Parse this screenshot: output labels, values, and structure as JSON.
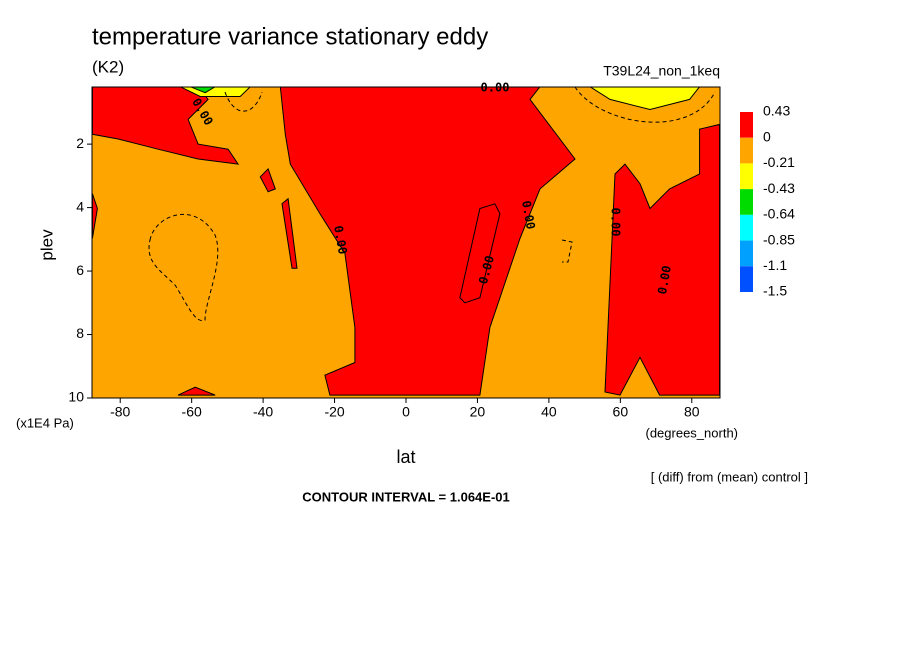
{
  "chart_data": {
    "type": "contour",
    "title": "temperature variance stationary eddy",
    "subtitle": "(K2)",
    "run_label": "T39L24_non_1keq",
    "x_label": "lat",
    "x_units": "(degrees_north)",
    "y_label": "plev",
    "y_units": "(x1E4 Pa)",
    "note": "[ (diff) from (mean) control ]",
    "contour_interval": "CONTOUR INTERVAL = 1.064E-01",
    "contour_label": "0.00",
    "xlim": [
      -87.9,
      87.9
    ],
    "xticks": [
      -80,
      -60,
      -40,
      -20,
      0,
      20,
      40,
      60,
      80
    ],
    "ylim": [
      0.2,
      10
    ],
    "yticks": [
      2,
      4,
      6,
      8,
      10
    ],
    "colorbar": {
      "levels": [
        0.43,
        0,
        -0.21,
        -0.43,
        -0.64,
        -0.85,
        -1.1,
        -1.5
      ],
      "colors": [
        "#ff0000",
        "#ffa500",
        "#ffff00",
        "#00dc00",
        "#00ffff",
        "#00a0ff",
        "#0050ff"
      ]
    },
    "regions": [
      {
        "min": -0.21,
        "lat": [
          -87.9,
          87.9,
          87.9,
          -87.9
        ],
        "plev": [
          0.2,
          0.2,
          10,
          10
        ]
      },
      {
        "min": 0,
        "lat": [
          -35.2,
          -33.8,
          -32.4,
          -24.1,
          -17.1,
          -14.3,
          -14.3,
          -22.7,
          -21.3,
          20.7,
          23.5,
          31.9,
          37.5,
          47.3,
          34.7,
          37.5
        ],
        "plev": [
          0.19,
          1.69,
          2.63,
          4.19,
          5.44,
          7.78,
          8.88,
          9.28,
          9.91,
          9.91,
          7.78,
          4.97,
          3.41,
          2.47,
          0.59,
          0.19
        ]
      },
      {
        "min": 0,
        "lat": [
          -87.8,
          -58.2,
          -55.4,
          -61,
          -58.2,
          -49.8,
          -47,
          -58.2,
          -69.4,
          -80.6,
          -87.8
        ],
        "plev": [
          0.19,
          0.19,
          0.59,
          1.22,
          2,
          2.16,
          2.63,
          2.47,
          2.16,
          1.84,
          1.69
        ]
      },
      {
        "min": 0,
        "lat": [
          -40.8,
          -38.6,
          -36.6,
          -38.6
        ],
        "plev": [
          3.03,
          2.78,
          3.41,
          3.5
        ]
      },
      {
        "min": 0,
        "lat": [
          -34.7,
          -33,
          -30.5,
          -31.9
        ],
        "plev": [
          3.88,
          3.72,
          5.91,
          5.91
        ]
      },
      {
        "min": 0,
        "lat": [
          15.1,
          20.7,
          24.9,
          26.3,
          20.7,
          16.5
        ],
        "plev": [
          6.84,
          4.03,
          3.88,
          4.19,
          6.84,
          7
        ]
      },
      {
        "min": 0,
        "lat": [
          55.7,
          58.5,
          61.3,
          65.5,
          68.3,
          73.8,
          82.2,
          82.2,
          87.8,
          87.8,
          71,
          65.5,
          59.9
        ],
        "plev": [
          9.81,
          2.94,
          2.63,
          3.25,
          4.03,
          3.41,
          2.94,
          1.53,
          1.38,
          9.91,
          9.91,
          8.72,
          9.91
        ]
      },
      {
        "min": 0,
        "lat": [
          -87.8,
          -86.4,
          -87.8
        ],
        "plev": [
          3.56,
          4.03,
          4.97
        ]
      },
      {
        "min": 0,
        "lat": [
          -63.8,
          -59,
          -53.4
        ],
        "plev": [
          9.91,
          9.66,
          9.91
        ]
      },
      {
        "min": -0.43,
        "lat": [
          51.5,
          57.1,
          68.3,
          79.4,
          82.2
        ],
        "plev": [
          0.19,
          0.59,
          0.91,
          0.59,
          0.19
        ]
      },
      {
        "min": -0.43,
        "lat": [
          -63.2,
          -57.6,
          -46.4,
          -43.6
        ],
        "plev": [
          0.19,
          0.5,
          0.5,
          0.19
        ]
      },
      {
        "min": -0.64,
        "lat": [
          -60.4,
          -56.2,
          -53.4
        ],
        "plev": [
          0.19,
          0.38,
          0.19
        ]
      }
    ]
  }
}
